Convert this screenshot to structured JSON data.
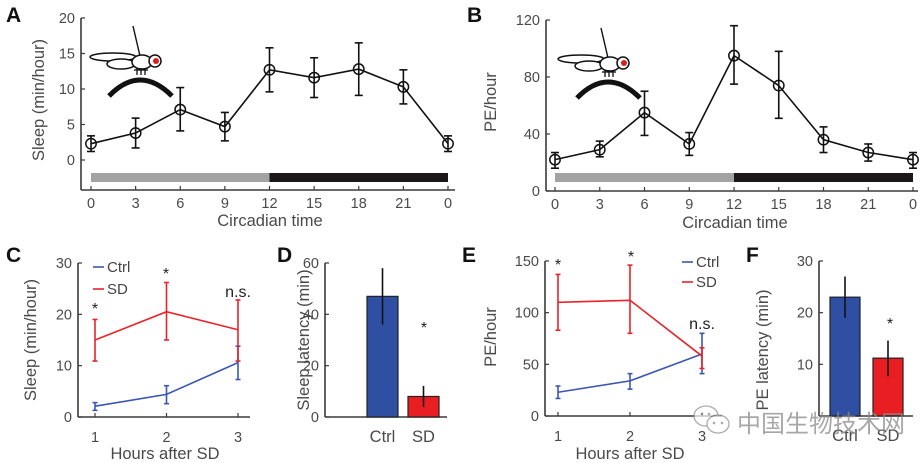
{
  "watermark": {
    "icon": "wechat-icon",
    "text": "中国生物技术网"
  },
  "chart_data": [
    {
      "id": "A",
      "panel": "A",
      "type": "line",
      "title": "",
      "xlabel": "Circadian time",
      "ylabel": "Sleep (min/hour)",
      "x": [
        0,
        3,
        6,
        9,
        12,
        15,
        18,
        21,
        24
      ],
      "x_tick_labels": [
        "0",
        "3",
        "6",
        "9",
        "12",
        "15",
        "18",
        "21",
        "0"
      ],
      "yticks": [
        0,
        5,
        10,
        15,
        20
      ],
      "ylim": [
        -4.2,
        20
      ],
      "grid": false,
      "marker": "open-circle",
      "icon": "fly-on-ball-icon",
      "light_dark_bar": {
        "light": [
          0,
          12
        ],
        "dark": [
          12,
          24
        ],
        "light_color": "#a3a3a3",
        "dark_color": "#1c181a"
      },
      "series": [
        {
          "name": "Sleep",
          "color": "#111111",
          "values": [
            2.3,
            3.8,
            7.1,
            4.7,
            12.7,
            11.6,
            12.8,
            10.3,
            2.3
          ],
          "err_low": [
            1.2,
            1.7,
            4.1,
            2.7,
            9.6,
            8.8,
            9.1,
            7.9,
            1.2
          ],
          "err_high": [
            3.4,
            5.9,
            10.2,
            6.7,
            15.8,
            14.4,
            16.5,
            12.7,
            3.4
          ]
        }
      ]
    },
    {
      "id": "B",
      "panel": "B",
      "type": "line",
      "title": "",
      "xlabel": "Circadian time",
      "ylabel": "PE/hour",
      "x": [
        0,
        3,
        6,
        9,
        12,
        15,
        18,
        21,
        24
      ],
      "x_tick_labels": [
        "0",
        "3",
        "6",
        "9",
        "12",
        "15",
        "18",
        "21",
        "0"
      ],
      "yticks": [
        0,
        40,
        80,
        120
      ],
      "ylim": [
        0,
        120
      ],
      "grid": false,
      "marker": "open-circle",
      "icon": "fly-on-ball-icon",
      "light_dark_bar": {
        "light": [
          0,
          12
        ],
        "dark": [
          12,
          24
        ],
        "light_color": "#a3a3a3",
        "dark_color": "#1c181a"
      },
      "series": [
        {
          "name": "PE",
          "color": "#111111",
          "values": [
            22,
            29,
            55,
            33,
            95,
            74,
            36,
            27,
            22
          ],
          "err_low": [
            16,
            24,
            39,
            25,
            75,
            51,
            27,
            21,
            16
          ],
          "err_high": [
            27,
            35,
            70,
            41,
            116,
            98,
            45,
            33,
            27
          ]
        }
      ]
    },
    {
      "id": "C",
      "panel": "C",
      "type": "line",
      "title": "",
      "xlabel": "Hours after SD",
      "ylabel": "Sleep (min/hour)",
      "x": [
        1,
        2,
        3
      ],
      "x_tick_labels": [
        "1",
        "2",
        "3"
      ],
      "yticks": [
        0,
        10,
        20,
        30
      ],
      "ylim": [
        0,
        30
      ],
      "grid": false,
      "legend": "top-left",
      "series": [
        {
          "name": "Ctrl",
          "color": "#3a56b4",
          "values": [
            2.1,
            4.4,
            10.6
          ],
          "err_low": [
            1.3,
            2.6,
            7.3
          ],
          "err_high": [
            2.8,
            6.1,
            13.8
          ]
        },
        {
          "name": "SD",
          "color": "#e8242a",
          "values": [
            15.0,
            20.5,
            17.0
          ],
          "err_low": [
            10.9,
            15.0,
            10.9
          ],
          "err_high": [
            19.0,
            26.2,
            22.8
          ]
        }
      ],
      "annotations": [
        {
          "x": 1,
          "text": "*"
        },
        {
          "x": 2,
          "text": "*"
        },
        {
          "x": 3,
          "text": "n.s."
        }
      ]
    },
    {
      "id": "D",
      "panel": "D",
      "type": "bar",
      "title": "",
      "xlabel": "",
      "ylabel": "Sleep latency (min)",
      "categories": [
        "Ctrl",
        "SD"
      ],
      "values": [
        47,
        8
      ],
      "err_low": [
        36,
        3.9
      ],
      "err_high": [
        58,
        12.1
      ],
      "colors": [
        "#2f4fa2",
        "#e81e22"
      ],
      "yticks": [
        0,
        20,
        40,
        60
      ],
      "ylim": [
        0,
        60
      ],
      "grid": false,
      "annotations": [
        {
          "category": "SD",
          "text": "*"
        }
      ]
    },
    {
      "id": "E",
      "panel": "E",
      "type": "line",
      "title": "",
      "xlabel": "Hours after SD",
      "ylabel": "PE/hour",
      "x": [
        1,
        2,
        3
      ],
      "x_tick_labels": [
        "1",
        "2",
        "3"
      ],
      "yticks": [
        0,
        50,
        100,
        150
      ],
      "ylim": [
        0,
        150
      ],
      "grid": false,
      "legend": "top-right",
      "series": [
        {
          "name": "Ctrl",
          "color": "#3a56b4",
          "values": [
            23,
            34,
            60
          ],
          "err_low": [
            17,
            26,
            41
          ],
          "err_high": [
            29,
            41,
            80
          ]
        },
        {
          "name": "SD",
          "color": "#e8242a",
          "values": [
            110,
            112,
            58
          ],
          "err_low": [
            83,
            80,
            46
          ],
          "err_high": [
            137,
            146,
            66
          ]
        }
      ],
      "annotations": [
        {
          "x": 1,
          "text": "*"
        },
        {
          "x": 2,
          "text": "*"
        },
        {
          "x": 3,
          "text": "n.s."
        }
      ]
    },
    {
      "id": "F",
      "panel": "F",
      "type": "bar",
      "title": "",
      "xlabel": "",
      "ylabel": "PE latency (min)",
      "categories": [
        "Ctrl",
        "SD"
      ],
      "values": [
        23,
        11.2
      ],
      "err_low": [
        19,
        7.7
      ],
      "err_high": [
        27,
        14.6
      ],
      "colors": [
        "#2f4fa2",
        "#e81e22"
      ],
      "yticks": [
        10,
        20,
        30
      ],
      "ylim": [
        0,
        30
      ],
      "grid": false,
      "annotations": [
        {
          "category": "SD",
          "text": "*"
        }
      ]
    }
  ]
}
